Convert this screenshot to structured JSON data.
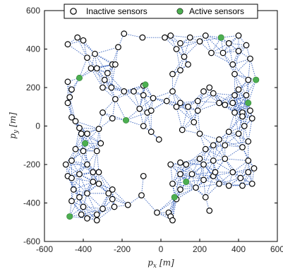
{
  "chart_data": {
    "type": "scatter",
    "title": "",
    "xlabel": {
      "var": "p",
      "sub": "x",
      "unit": "[m]"
    },
    "ylabel": {
      "var": "p",
      "sub": "y",
      "unit": "[m]"
    },
    "xlim": [
      -600,
      600
    ],
    "ylim": [
      -600,
      600
    ],
    "xticks": [
      -600,
      -400,
      -200,
      0,
      200,
      400,
      600
    ],
    "yticks": [
      -600,
      -400,
      -200,
      0,
      200,
      400,
      600
    ],
    "xtick_labels": [
      "-600",
      "-400",
      "-200",
      "0",
      "200",
      "400",
      "600"
    ],
    "ytick_labels": [
      "-600",
      "-400",
      "-200",
      "0",
      "200",
      "400",
      "600"
    ],
    "grid": false,
    "legend_position": "top",
    "edge_color": "#1f4fb5",
    "series": [
      {
        "name": "Inactive sensors",
        "marker": "open-circle",
        "color": "#000000",
        "fill": "#ffffff",
        "points": [
          [
            -430,
            460
          ],
          [
            -480,
            425
          ],
          [
            -400,
            445
          ],
          [
            -380,
            355
          ],
          [
            -340,
            375
          ],
          [
            -330,
            300
          ],
          [
            -360,
            300
          ],
          [
            -250,
            320
          ],
          [
            -275,
            275
          ],
          [
            -235,
            320
          ],
          [
            -220,
            410
          ],
          [
            -190,
            480
          ],
          [
            -95,
            460
          ],
          [
            -480,
            230
          ],
          [
            -470,
            150
          ],
          [
            -460,
            190
          ],
          [
            -480,
            120
          ],
          [
            -460,
            45
          ],
          [
            -440,
            25
          ],
          [
            -420,
            -10
          ],
          [
            -410,
            -40
          ],
          [
            -380,
            -40
          ],
          [
            -320,
            -15
          ],
          [
            -300,
            70
          ],
          [
            -250,
            40
          ],
          [
            -235,
            140
          ],
          [
            -190,
            180
          ],
          [
            -255,
            200
          ],
          [
            -300,
            200
          ],
          [
            -290,
            240
          ],
          [
            -140,
            180
          ],
          [
            -110,
            90
          ],
          [
            -70,
            70
          ],
          [
            -50,
            80
          ],
          [
            -90,
            0
          ],
          [
            -90,
            210
          ],
          [
            -90,
            160
          ],
          [
            -40,
            145
          ],
          [
            -310,
            -90
          ],
          [
            -330,
            -130
          ],
          [
            -400,
            -130
          ],
          [
            -440,
            -120
          ],
          [
            -460,
            -180
          ],
          [
            -490,
            -200
          ],
          [
            -480,
            -260
          ],
          [
            -460,
            -270
          ],
          [
            -420,
            -250
          ],
          [
            -380,
            -200
          ],
          [
            -350,
            -240
          ],
          [
            -320,
            -240
          ],
          [
            -350,
            -290
          ],
          [
            -320,
            -300
          ],
          [
            -270,
            -350
          ],
          [
            -250,
            -330
          ],
          [
            -250,
            -380
          ],
          [
            -240,
            -420
          ],
          [
            -300,
            -430
          ],
          [
            -330,
            -460
          ],
          [
            -330,
            -490
          ],
          [
            -380,
            -350
          ],
          [
            -400,
            -420
          ],
          [
            -420,
            -370
          ],
          [
            -450,
            -330
          ],
          [
            -460,
            -390
          ],
          [
            -380,
            -480
          ],
          [
            -410,
            -460
          ],
          [
            -170,
            -410
          ],
          [
            -100,
            -360
          ],
          [
            -90,
            -260
          ],
          [
            -20,
            -450
          ],
          [
            40,
            -450
          ],
          [
            50,
            -470
          ],
          [
            60,
            -490
          ],
          [
            60,
            -300
          ],
          [
            80,
            -380
          ],
          [
            100,
            -330
          ],
          [
            100,
            -250
          ],
          [
            130,
            -200
          ],
          [
            160,
            -250
          ],
          [
            180,
            -320
          ],
          [
            220,
            -280
          ],
          [
            230,
            -370
          ],
          [
            270,
            -260
          ],
          [
            220,
            -200
          ],
          [
            200,
            -170
          ],
          [
            270,
            -180
          ],
          [
            280,
            -240
          ],
          [
            230,
            -120
          ],
          [
            300,
            -70
          ],
          [
            330,
            -100
          ],
          [
            330,
            -170
          ],
          [
            350,
            -310
          ],
          [
            450,
            -240
          ],
          [
            420,
            -110
          ],
          [
            450,
            -80
          ],
          [
            300,
            -300
          ],
          [
            270,
            -100
          ],
          [
            250,
            -440
          ],
          [
            200,
            -40
          ],
          [
            170,
            20
          ],
          [
            190,
            80
          ],
          [
            190,
            130
          ],
          [
            140,
            100
          ],
          [
            100,
            120
          ],
          [
            80,
            100
          ],
          [
            110,
            -20
          ],
          [
            100,
            -190
          ],
          [
            50,
            -200
          ],
          [
            220,
            180
          ],
          [
            250,
            200
          ],
          [
            270,
            170
          ],
          [
            300,
            120
          ],
          [
            330,
            110
          ],
          [
            370,
            120
          ],
          [
            400,
            190
          ],
          [
            380,
            160
          ],
          [
            440,
            160
          ],
          [
            450,
            240
          ],
          [
            380,
            270
          ],
          [
            370,
            320
          ],
          [
            400,
            390
          ],
          [
            460,
            350
          ],
          [
            440,
            420
          ],
          [
            400,
            470
          ],
          [
            350,
            430
          ],
          [
            320,
            380
          ],
          [
            260,
            380
          ],
          [
            230,
            470
          ],
          [
            200,
            440
          ],
          [
            150,
            460
          ],
          [
            100,
            430
          ],
          [
            50,
            470
          ],
          [
            20,
            460
          ],
          [
            80,
            400
          ],
          [
            120,
            360
          ],
          [
            140,
            320
          ],
          [
            100,
            290
          ],
          [
            60,
            270
          ],
          [
            60,
            180
          ],
          [
            30,
            130
          ],
          [
            -50,
            -30
          ],
          [
            -10,
            -70
          ],
          [
            370,
            -240
          ],
          [
            410,
            -270
          ],
          [
            420,
            -310
          ],
          [
            470,
            -300
          ],
          [
            450,
            -180
          ],
          [
            480,
            -220
          ],
          [
            400,
            -40
          ],
          [
            350,
            -30
          ],
          [
            430,
            0
          ],
          [
            460,
            80
          ],
          [
            470,
            40
          ],
          [
            420,
            70
          ],
          [
            380,
            70
          ],
          [
            420,
            50
          ]
        ]
      },
      {
        "name": "Active sensors",
        "marker": "filled-circle",
        "color": "#000000",
        "fill": "#4caf50",
        "points": [
          [
            -420,
            250
          ],
          [
            -80,
            215
          ],
          [
            -180,
            30
          ],
          [
            -390,
            -90
          ],
          [
            310,
            460
          ],
          [
            490,
            240
          ],
          [
            450,
            120
          ],
          [
            130,
            -290
          ],
          [
            70,
            -370
          ],
          [
            -470,
            -470
          ]
        ]
      }
    ]
  }
}
